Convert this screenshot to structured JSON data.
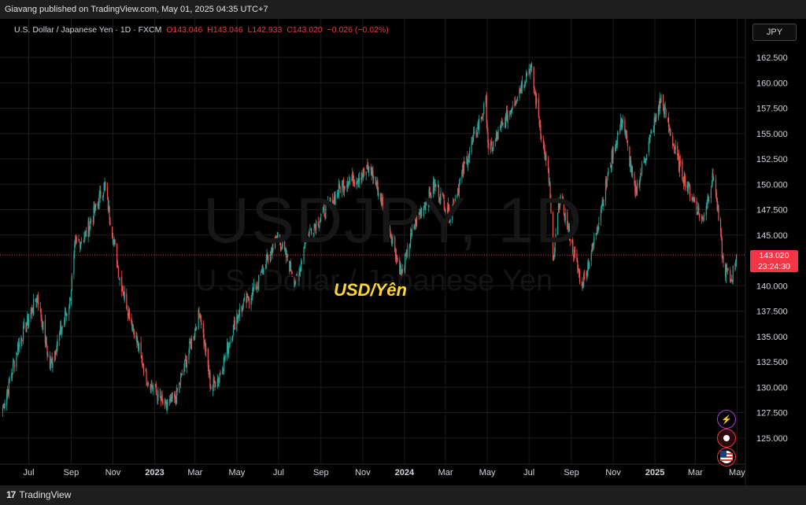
{
  "header": {
    "publish_text": "Giavang published on TradingView.com, May 01, 2025 04:35 UTC+7"
  },
  "legend": {
    "symbol": "U.S. Dollar / Japanese Yen · 1D · FXCM",
    "open": "O143.046",
    "high": "H143.046",
    "low": "L142.933",
    "close": "C143.020",
    "change": "−0.026 (−0.02%)"
  },
  "currency_badge": "JPY",
  "price_label": {
    "price": "143.020",
    "countdown": "23:24:30"
  },
  "watermark": {
    "symbol": "USDJPY, 1D",
    "name": "U.S. Dollar / Japanese Yen"
  },
  "annotation": "USD/Yên",
  "footer": {
    "logo_text": "TradingView"
  },
  "icons": [
    "lightning-icon",
    "record-icon",
    "us-flag-icon"
  ],
  "colors": {
    "up": "#26a69a",
    "down": "#ef5350",
    "grid": "#1c1c1c",
    "price_line": "#f23645",
    "annotation": "#ffd633"
  },
  "chart_data": {
    "type": "candlestick",
    "title": "U.S. Dollar / Japanese Yen",
    "timeframe": "1D",
    "ylim": [
      122.5,
      165.0
    ],
    "y_ticks": [
      "162.500",
      "160.000",
      "157.500",
      "155.000",
      "152.500",
      "150.000",
      "147.500",
      "145.000",
      "140.000",
      "137.500",
      "135.000",
      "132.500",
      "130.000",
      "127.500",
      "125.000"
    ],
    "x_ticks": [
      {
        "label": "Jul",
        "date": "2022-07-01"
      },
      {
        "label": "Sep",
        "date": "2022-09-01"
      },
      {
        "label": "Nov",
        "date": "2022-11-01"
      },
      {
        "label": "2023",
        "date": "2023-01-01"
      },
      {
        "label": "Mar",
        "date": "2023-03-01"
      },
      {
        "label": "May",
        "date": "2023-05-01"
      },
      {
        "label": "Jul",
        "date": "2023-07-01"
      },
      {
        "label": "Sep",
        "date": "2023-09-01"
      },
      {
        "label": "Nov",
        "date": "2023-11-01"
      },
      {
        "label": "2024",
        "date": "2024-01-01"
      },
      {
        "label": "Mar",
        "date": "2024-03-01"
      },
      {
        "label": "May",
        "date": "2024-05-01"
      },
      {
        "label": "Jul",
        "date": "2024-07-01"
      },
      {
        "label": "Sep",
        "date": "2024-09-01"
      },
      {
        "label": "Nov",
        "date": "2024-11-01"
      },
      {
        "label": "2025",
        "date": "2025-01-01"
      },
      {
        "label": "Mar",
        "date": "2025-03-01"
      },
      {
        "label": "May",
        "date": "2025-05-01"
      }
    ],
    "last_price": 143.02,
    "close_path": [
      [
        "2022-05-24",
        128.0
      ],
      [
        "2022-06-01",
        130.0
      ],
      [
        "2022-06-15",
        134.0
      ],
      [
        "2022-07-14",
        139.0
      ],
      [
        "2022-08-01",
        132.0
      ],
      [
        "2022-08-30",
        138.5
      ],
      [
        "2022-09-07",
        144.0
      ],
      [
        "2022-09-22",
        145.0
      ],
      [
        "2022-10-20",
        150.0
      ],
      [
        "2022-11-10",
        141.0
      ],
      [
        "2022-11-30",
        136.0
      ],
      [
        "2022-12-20",
        131.0
      ],
      [
        "2023-01-16",
        128.0
      ],
      [
        "2023-02-01",
        129.0
      ],
      [
        "2023-03-08",
        137.5
      ],
      [
        "2023-03-24",
        130.0
      ],
      [
        "2023-04-05",
        131.0
      ],
      [
        "2023-05-01",
        137.0
      ],
      [
        "2023-05-30",
        140.0
      ],
      [
        "2023-06-30",
        145.0
      ],
      [
        "2023-07-28",
        140.0
      ],
      [
        "2023-08-10",
        145.0
      ],
      [
        "2023-09-15",
        148.0
      ],
      [
        "2023-10-02",
        150.0
      ],
      [
        "2023-11-13",
        151.5
      ],
      [
        "2023-12-05",
        147.0
      ],
      [
        "2023-12-28",
        141.0
      ],
      [
        "2024-01-15",
        146.0
      ],
      [
        "2024-02-15",
        150.0
      ],
      [
        "2024-03-08",
        147.0
      ],
      [
        "2024-03-27",
        151.5
      ],
      [
        "2024-04-29",
        158.0
      ],
      [
        "2024-05-03",
        153.0
      ],
      [
        "2024-06-01",
        157.0
      ],
      [
        "2024-07-03",
        161.7
      ],
      [
        "2024-07-31",
        150.0
      ],
      [
        "2024-08-05",
        142.0
      ],
      [
        "2024-08-15",
        149.0
      ],
      [
        "2024-09-16",
        140.0
      ],
      [
        "2024-10-01",
        143.5
      ],
      [
        "2024-10-31",
        153.0
      ],
      [
        "2024-11-15",
        156.5
      ],
      [
        "2024-12-03",
        149.0
      ],
      [
        "2025-01-10",
        158.5
      ],
      [
        "2025-02-07",
        151.5
      ],
      [
        "2025-03-11",
        146.5
      ],
      [
        "2025-03-28",
        151.0
      ],
      [
        "2025-04-11",
        142.0
      ],
      [
        "2025-04-22",
        140.5
      ],
      [
        "2025-04-30",
        143.02
      ]
    ]
  }
}
